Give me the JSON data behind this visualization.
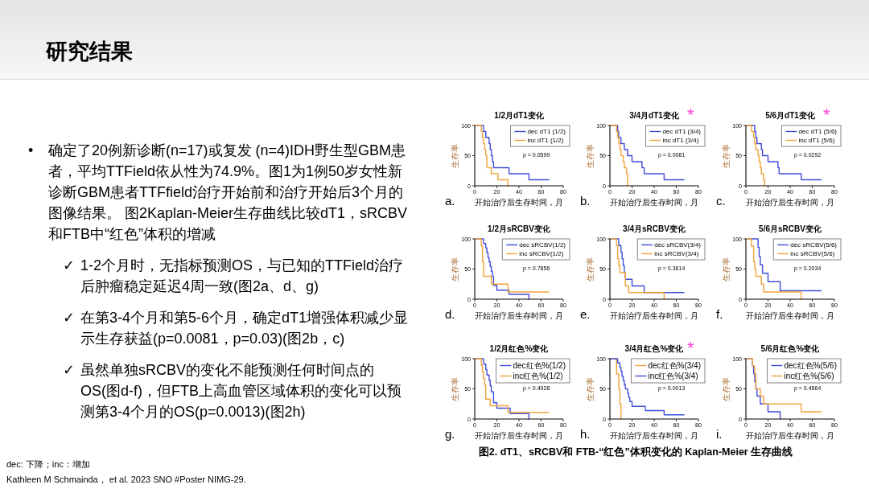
{
  "chart_data": [
    {
      "type": "other",
      "title": "研究结果",
      "annotations": [
        "• 确定了20例新诊断(n=17)或复发 (n=4)IDH野生型GBM患者，平均TTField依从性为74.9%。图1为1例50岁女性新诊断GBM患者TTFfield治疗开始前和治疗开始后3个月的图像结果。 图2Kaplan-Meier生存曲线比较dT1，sRCBV和FTB中“红色”体积的增减",
        "✓ 1-2个月时，无指标预测OS，与已知的TTField治疗后肿瘤稳定延迟4周一致(图2a、d、g)",
        "✓ 在第3-4个月和第5-6个月，确定dT1增强体积减少显示生存获益(p=0.0081，p=0.03)(图2b，c)",
        "✓ 虽然单独sRCBV的变化不能预测任何时间点的OS(图d-f)，但FTB上高血管区域体积的变化可以预测第3-4个月的OS(p=0.0013)(图2h)",
        "dec: 下降；inc：增加",
        "Kathleen M Schmainda， et al. 2023 SNO #Poster NIMG-29.",
        "图2. dT1、sRCBV和 FTB-“红色”体积变化的 Kaplan-Meier 生存曲线"
      ]
    },
    {
      "type": "step",
      "title": "1/2月dT1变化",
      "xlabel": "开始治疗后生存时间，月",
      "ylabel": "生存率",
      "xlim": [
        0,
        80
      ],
      "ylim": [
        0,
        100
      ],
      "xticks": [
        0,
        20,
        40,
        60,
        80
      ],
      "yticks": [
        0,
        50,
        100
      ],
      "legend": "top right",
      "annotations": [
        "a.",
        "p = 0.0599"
      ],
      "series": [
        {
          "name": "dec dT1 (1/2)",
          "color": "#3f4fd9",
          "x": [
            0,
            8,
            10,
            13,
            14,
            15,
            16,
            17,
            31,
            49,
            67
          ],
          "values": [
            100,
            90,
            80,
            70,
            60,
            50,
            40,
            30,
            20,
            10,
            10
          ]
        },
        {
          "name": "inc dT1 (1/2)",
          "color": "#f0a43a",
          "x": [
            0,
            6,
            7,
            8,
            9,
            10,
            11,
            15,
            21,
            30
          ],
          "values": [
            100,
            90,
            80,
            70,
            60,
            50,
            30,
            20,
            10,
            0
          ]
        }
      ]
    },
    {
      "type": "step",
      "title": "3/4月dT1变化",
      "xlabel": "开始治疗后生存时间，月",
      "ylabel": "生存率",
      "xlim": [
        0,
        80
      ],
      "ylim": [
        0,
        100
      ],
      "xticks": [
        0,
        20,
        40,
        60,
        80
      ],
      "yticks": [
        0,
        50,
        100
      ],
      "legend": "top right",
      "annotations": [
        "b.",
        "p = 0.0081",
        "*"
      ],
      "series": [
        {
          "name": "dec dT1 (3/4)",
          "color": "#3f4fd9",
          "x": [
            0,
            7,
            8,
            10,
            13,
            16,
            20,
            29,
            31,
            49,
            67
          ],
          "values": [
            100,
            90,
            80,
            70,
            60,
            50,
            40,
            30,
            20,
            10,
            10
          ]
        },
        {
          "name": "inc dT1 (3/4)",
          "color": "#f0a43a",
          "x": [
            0,
            6,
            7,
            8,
            9,
            10,
            12,
            13,
            15,
            16
          ],
          "values": [
            100,
            90,
            80,
            70,
            60,
            50,
            40,
            30,
            20,
            0
          ]
        }
      ]
    },
    {
      "type": "step",
      "title": "5/6月dT1变化",
      "xlabel": "开始治疗后生存时间，月",
      "ylabel": "生存率",
      "xlim": [
        0,
        80
      ],
      "ylim": [
        0,
        100
      ],
      "xticks": [
        0,
        20,
        40,
        60,
        80
      ],
      "yticks": [
        0,
        50,
        100
      ],
      "legend": "top right",
      "annotations": [
        "c.",
        "p = 0.0292",
        "*"
      ],
      "series": [
        {
          "name": "dec dT1 (5/6)",
          "color": "#3f4fd9",
          "x": [
            0,
            8,
            9,
            10,
            14,
            15,
            20,
            29,
            30,
            50,
            68
          ],
          "values": [
            100,
            90,
            80,
            70,
            60,
            50,
            40,
            30,
            20,
            10,
            10
          ]
        },
        {
          "name": "inc dT1 (5/6)",
          "color": "#f0a43a",
          "x": [
            0,
            5,
            7,
            8,
            9,
            11,
            12,
            13,
            14,
            16,
            17
          ],
          "values": [
            100,
            90,
            80,
            70,
            60,
            50,
            40,
            30,
            20,
            10,
            0
          ]
        }
      ]
    },
    {
      "type": "step",
      "title": "1/2月sRCBV变化",
      "xlabel": "开始治疗后生存时间，月",
      "ylabel": "生存率",
      "xlim": [
        0,
        80
      ],
      "ylim": [
        0,
        100
      ],
      "xticks": [
        0,
        20,
        40,
        60,
        80
      ],
      "yticks": [
        0,
        50,
        100
      ],
      "legend": "top right",
      "annotations": [
        "d.",
        "p = 0.7856"
      ],
      "series": [
        {
          "name": "dec sRCBV(1/2)",
          "color": "#3f4fd9",
          "x": [
            0,
            8,
            10,
            11,
            12,
            13,
            14,
            15,
            16,
            17,
            20,
            31,
            49
          ],
          "values": [
            100,
            92,
            85,
            77,
            69,
            62,
            54,
            46,
            38,
            23,
            15,
            8,
            0
          ]
        },
        {
          "name": "inc sRCBV(1/2)",
          "color": "#f0a43a",
          "x": [
            0,
            6,
            7,
            8,
            15,
            30,
            67
          ],
          "values": [
            100,
            88,
            62,
            38,
            25,
            12,
            12
          ]
        }
      ]
    },
    {
      "type": "step",
      "title": "3/4月sRCBV变化",
      "xlabel": "开始治疗后生存时间，月",
      "ylabel": "生存率",
      "xlim": [
        0,
        80
      ],
      "ylim": [
        0,
        100
      ],
      "xticks": [
        0,
        20,
        40,
        60,
        80
      ],
      "yticks": [
        0,
        50,
        100
      ],
      "legend": "top right",
      "annotations": [
        "e.",
        "p = 0.3614"
      ],
      "series": [
        {
          "name": "dec sRCBV(3/4)",
          "color": "#3f4fd9",
          "x": [
            0,
            8,
            10,
            11,
            12,
            13,
            14,
            20,
            31,
            67
          ],
          "values": [
            100,
            89,
            78,
            67,
            56,
            44,
            33,
            22,
            11,
            11
          ]
        },
        {
          "name": "inc sRCBV(3/4)",
          "color": "#f0a43a",
          "x": [
            0,
            6,
            7,
            8,
            9,
            14,
            17,
            49
          ],
          "values": [
            100,
            89,
            67,
            56,
            44,
            22,
            11,
            0
          ]
        }
      ]
    },
    {
      "type": "step",
      "title": "5/6月sRCBV变化",
      "xlabel": "开始治疗后生存时间，月",
      "ylabel": "生存率",
      "xlim": [
        0,
        80
      ],
      "ylim": [
        0,
        100
      ],
      "xticks": [
        0,
        20,
        40,
        60,
        80
      ],
      "yticks": [
        0,
        50,
        100
      ],
      "legend": "top right",
      "annotations": [
        "f.",
        "p = 0.2034"
      ],
      "series": [
        {
          "name": "dec sRCBV(5/6)",
          "color": "#3f4fd9",
          "x": [
            0,
            11,
            12,
            13,
            15,
            20,
            31,
            68
          ],
          "values": [
            100,
            86,
            71,
            57,
            43,
            29,
            14,
            14
          ]
        },
        {
          "name": "inc sRCBV(5/6)",
          "color": "#f0a43a",
          "x": [
            0,
            5,
            7,
            8,
            9,
            14,
            16,
            50
          ],
          "values": [
            100,
            88,
            62,
            50,
            38,
            25,
            12,
            0
          ]
        }
      ]
    },
    {
      "type": "step",
      "title": "1/2月红色%变化",
      "xlabel": "开始治疗后生存时间，月",
      "ylabel": "生存率",
      "xlim": [
        0,
        80
      ],
      "ylim": [
        0,
        100
      ],
      "xticks": [
        0,
        20,
        40,
        60,
        80
      ],
      "yticks": [
        0,
        50,
        100
      ],
      "legend": "top right",
      "annotations": [
        "g.",
        "p = 0.4928"
      ],
      "series": [
        {
          "name": "dec红色%(1/2)",
          "color": "#3f4fd9",
          "x": [
            0,
            8,
            10,
            11,
            13,
            14,
            15,
            17,
            20,
            32,
            49
          ],
          "values": [
            100,
            91,
            82,
            73,
            64,
            55,
            45,
            27,
            18,
            9,
            0
          ]
        },
        {
          "name": "inc红色%(1/2)",
          "color": "#f0a43a",
          "x": [
            0,
            6,
            7,
            8,
            9,
            10,
            14,
            30,
            67
          ],
          "values": [
            100,
            89,
            78,
            67,
            56,
            33,
            22,
            11,
            11
          ]
        }
      ]
    },
    {
      "type": "step",
      "title": "3/4月红色%变化",
      "xlabel": "开始治疗后生存时间，月",
      "ylabel": "生存率",
      "xlim": [
        0,
        80
      ],
      "ylim": [
        0,
        100
      ],
      "xticks": [
        0,
        20,
        40,
        60,
        80
      ],
      "yticks": [
        0,
        50,
        100
      ],
      "legend": "top right",
      "annotations": [
        "h.",
        "p = 0.0013",
        "*"
      ],
      "series": [
        {
          "name": "dec红色%(3/4)",
          "color": "#f0a43a",
          "x": [
            0,
            6,
            8,
            9,
            10
          ],
          "values": [
            100,
            75,
            50,
            25,
            0
          ]
        },
        {
          "name": "inc红色%(3/4)",
          "color": "#3f4fd9",
          "x": [
            0,
            7,
            9,
            10,
            11,
            12,
            13,
            14,
            16,
            17,
            18,
            20,
            32,
            49,
            67
          ],
          "values": [
            100,
            93,
            86,
            79,
            71,
            64,
            57,
            50,
            43,
            36,
            29,
            21,
            14,
            7,
            7
          ]
        }
      ]
    },
    {
      "type": "step",
      "title": "5/6月红色%变化",
      "xlabel": "开始治疗后生存时间，月",
      "ylabel": "生存率",
      "xlim": [
        0,
        80
      ],
      "ylim": [
        0,
        100
      ],
      "xticks": [
        0,
        20,
        40,
        60,
        80
      ],
      "yticks": [
        0,
        50,
        100
      ],
      "legend": "top right",
      "annotations": [
        "i.",
        "p = 0.4564"
      ],
      "series": [
        {
          "name": "dec红色%(5/6)",
          "color": "#3f4fd9",
          "x": [
            0,
            6,
            7,
            8,
            9,
            10,
            13,
            20,
            31
          ],
          "values": [
            100,
            88,
            75,
            62,
            50,
            38,
            25,
            12,
            0
          ]
        },
        {
          "name": "inc红色%(5/6)",
          "color": "#f0a43a",
          "x": [
            0,
            6,
            8,
            9,
            13,
            16,
            50,
            68
          ],
          "values": [
            100,
            88,
            75,
            50,
            38,
            25,
            12,
            12
          ]
        }
      ]
    }
  ]
}
